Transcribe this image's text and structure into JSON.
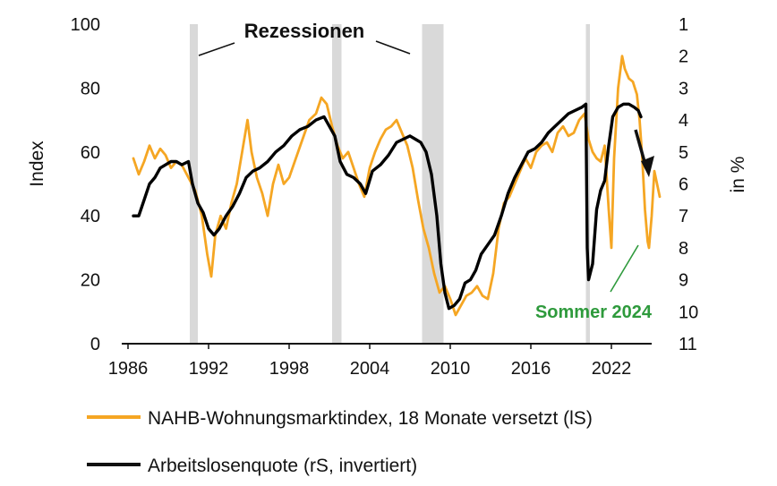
{
  "chart_data": {
    "type": "line",
    "title": "",
    "xlabel": "",
    "ylabel_left": "Index",
    "ylabel_right": "in %",
    "x_ticks": [
      "1986",
      "1992",
      "1998",
      "2004",
      "2010",
      "2016",
      "2022"
    ],
    "xlim": [
      1986,
      2025
    ],
    "y_left_ticks": [
      "0",
      "20",
      "40",
      "60",
      "80",
      "100"
    ],
    "ylim_left": [
      0,
      100
    ],
    "y_right_ticks": [
      "1",
      "2",
      "3",
      "4",
      "5",
      "6",
      "7",
      "8",
      "9",
      "10",
      "11"
    ],
    "ylim_right_inverted": [
      1,
      11
    ],
    "grid": false,
    "legend_position": "bottom",
    "annotations": {
      "recessions_label": "Rezessionen",
      "summer_label": "Sommer 2024"
    },
    "recessions": [
      [
        1990.6,
        1991.2
      ],
      [
        2001.2,
        2001.9
      ],
      [
        2007.9,
        2009.5
      ],
      [
        2020.1,
        2020.4
      ]
    ],
    "series": [
      {
        "name": "NAHB-Wohnungsmarktindex, 18 Monate versetzt (lS)",
        "color": "#F5A623",
        "axis": "left",
        "points": [
          [
            1986.4,
            58
          ],
          [
            1986.8,
            53
          ],
          [
            1987.2,
            57
          ],
          [
            1987.6,
            62
          ],
          [
            1988.0,
            58
          ],
          [
            1988.4,
            61
          ],
          [
            1988.8,
            59
          ],
          [
            1989.2,
            55
          ],
          [
            1989.6,
            57
          ],
          [
            1990.0,
            56
          ],
          [
            1990.5,
            52
          ],
          [
            1991.0,
            48
          ],
          [
            1991.5,
            40
          ],
          [
            1991.9,
            28
          ],
          [
            1992.2,
            21
          ],
          [
            1992.5,
            34
          ],
          [
            1992.9,
            40
          ],
          [
            1993.3,
            36
          ],
          [
            1993.7,
            44
          ],
          [
            1994.1,
            50
          ],
          [
            1994.5,
            60
          ],
          [
            1994.9,
            70
          ],
          [
            1995.2,
            60
          ],
          [
            1995.6,
            52
          ],
          [
            1996.0,
            47
          ],
          [
            1996.4,
            40
          ],
          [
            1996.8,
            50
          ],
          [
            1997.2,
            56
          ],
          [
            1997.6,
            50
          ],
          [
            1998.0,
            52
          ],
          [
            1998.5,
            58
          ],
          [
            1999.0,
            64
          ],
          [
            1999.5,
            70
          ],
          [
            2000.0,
            72
          ],
          [
            2000.4,
            77
          ],
          [
            2000.8,
            75
          ],
          [
            2001.2,
            68
          ],
          [
            2001.6,
            62
          ],
          [
            2002.0,
            58
          ],
          [
            2002.4,
            60
          ],
          [
            2002.8,
            55
          ],
          [
            2003.2,
            50
          ],
          [
            2003.6,
            46
          ],
          [
            2004.0,
            55
          ],
          [
            2004.4,
            60
          ],
          [
            2004.8,
            64
          ],
          [
            2005.2,
            67
          ],
          [
            2005.6,
            68
          ],
          [
            2006.0,
            70
          ],
          [
            2006.4,
            66
          ],
          [
            2006.8,
            62
          ],
          [
            2007.2,
            55
          ],
          [
            2007.6,
            45
          ],
          [
            2008.0,
            36
          ],
          [
            2008.4,
            30
          ],
          [
            2008.8,
            22
          ],
          [
            2009.2,
            16
          ],
          [
            2009.6,
            18
          ],
          [
            2010.0,
            14
          ],
          [
            2010.4,
            9
          ],
          [
            2010.8,
            12
          ],
          [
            2011.2,
            15
          ],
          [
            2011.6,
            16
          ],
          [
            2012.0,
            18
          ],
          [
            2012.4,
            15
          ],
          [
            2012.8,
            14
          ],
          [
            2013.2,
            22
          ],
          [
            2013.6,
            36
          ],
          [
            2014.0,
            44
          ],
          [
            2014.4,
            46
          ],
          [
            2014.8,
            50
          ],
          [
            2015.2,
            54
          ],
          [
            2015.6,
            58
          ],
          [
            2016.0,
            55
          ],
          [
            2016.4,
            60
          ],
          [
            2016.8,
            62
          ],
          [
            2017.2,
            63
          ],
          [
            2017.6,
            60
          ],
          [
            2018.0,
            66
          ],
          [
            2018.4,
            68
          ],
          [
            2018.8,
            65
          ],
          [
            2019.2,
            66
          ],
          [
            2019.6,
            70
          ],
          [
            2020.0,
            72
          ],
          [
            2020.3,
            64
          ],
          [
            2020.6,
            60
          ],
          [
            2020.9,
            58
          ],
          [
            2021.2,
            57
          ],
          [
            2021.5,
            62
          ],
          [
            2021.8,
            42
          ],
          [
            2022.0,
            30
          ],
          [
            2022.2,
            58
          ],
          [
            2022.5,
            80
          ],
          [
            2022.8,
            90
          ],
          [
            2023.0,
            86
          ],
          [
            2023.3,
            83
          ],
          [
            2023.6,
            82
          ],
          [
            2023.9,
            78
          ],
          [
            2024.1,
            70
          ],
          [
            2024.3,
            58
          ],
          [
            2024.5,
            42
          ],
          [
            2024.7,
            32
          ],
          [
            2024.8,
            30
          ],
          [
            2025.0,
            40
          ],
          [
            2025.2,
            54
          ],
          [
            2025.4,
            50
          ],
          [
            2025.6,
            46
          ]
        ]
      },
      {
        "name": "Arbeitslosenquote (rS, invertiert)",
        "color": "#000000",
        "axis": "right",
        "points": [
          [
            1986.4,
            7.0
          ],
          [
            1986.8,
            7.0
          ],
          [
            1987.2,
            6.5
          ],
          [
            1987.6,
            6.0
          ],
          [
            1988.0,
            5.8
          ],
          [
            1988.4,
            5.5
          ],
          [
            1988.8,
            5.4
          ],
          [
            1989.2,
            5.3
          ],
          [
            1989.6,
            5.3
          ],
          [
            1990.0,
            5.4
          ],
          [
            1990.5,
            5.3
          ],
          [
            1990.8,
            6.0
          ],
          [
            1991.2,
            6.6
          ],
          [
            1991.6,
            6.9
          ],
          [
            1992.0,
            7.4
          ],
          [
            1992.4,
            7.6
          ],
          [
            1992.8,
            7.4
          ],
          [
            1993.3,
            7.0
          ],
          [
            1993.8,
            6.7
          ],
          [
            1994.3,
            6.3
          ],
          [
            1994.8,
            5.8
          ],
          [
            1995.3,
            5.6
          ],
          [
            1995.8,
            5.5
          ],
          [
            1996.4,
            5.3
          ],
          [
            1997.0,
            5.0
          ],
          [
            1997.6,
            4.8
          ],
          [
            1998.2,
            4.5
          ],
          [
            1998.8,
            4.3
          ],
          [
            1999.4,
            4.2
          ],
          [
            2000.0,
            4.0
          ],
          [
            2000.6,
            3.9
          ],
          [
            2001.0,
            4.2
          ],
          [
            2001.4,
            4.5
          ],
          [
            2001.8,
            5.3
          ],
          [
            2002.3,
            5.7
          ],
          [
            2002.8,
            5.8
          ],
          [
            2003.3,
            6.0
          ],
          [
            2003.7,
            6.3
          ],
          [
            2004.2,
            5.6
          ],
          [
            2004.8,
            5.4
          ],
          [
            2005.4,
            5.1
          ],
          [
            2006.0,
            4.7
          ],
          [
            2006.5,
            4.6
          ],
          [
            2007.0,
            4.5
          ],
          [
            2007.4,
            4.6
          ],
          [
            2007.8,
            4.7
          ],
          [
            2008.2,
            5.0
          ],
          [
            2008.6,
            5.7
          ],
          [
            2009.0,
            7.0
          ],
          [
            2009.3,
            8.5
          ],
          [
            2009.6,
            9.4
          ],
          [
            2009.9,
            9.9
          ],
          [
            2010.3,
            9.8
          ],
          [
            2010.7,
            9.6
          ],
          [
            2011.1,
            9.1
          ],
          [
            2011.5,
            9.0
          ],
          [
            2011.9,
            8.7
          ],
          [
            2012.3,
            8.2
          ],
          [
            2012.8,
            7.9
          ],
          [
            2013.3,
            7.6
          ],
          [
            2013.8,
            7.0
          ],
          [
            2014.3,
            6.3
          ],
          [
            2014.8,
            5.8
          ],
          [
            2015.3,
            5.4
          ],
          [
            2015.8,
            5.0
          ],
          [
            2016.3,
            4.9
          ],
          [
            2016.8,
            4.7
          ],
          [
            2017.3,
            4.4
          ],
          [
            2017.8,
            4.2
          ],
          [
            2018.3,
            4.0
          ],
          [
            2018.8,
            3.8
          ],
          [
            2019.3,
            3.7
          ],
          [
            2019.8,
            3.6
          ],
          [
            2020.1,
            3.5
          ],
          [
            2020.2,
            8.0
          ],
          [
            2020.3,
            9.0
          ],
          [
            2020.6,
            8.5
          ],
          [
            2020.9,
            6.8
          ],
          [
            2021.2,
            6.2
          ],
          [
            2021.5,
            5.9
          ],
          [
            2021.8,
            4.8
          ],
          [
            2022.1,
            3.9
          ],
          [
            2022.5,
            3.6
          ],
          [
            2022.9,
            3.5
          ],
          [
            2023.3,
            3.5
          ],
          [
            2023.7,
            3.6
          ],
          [
            2024.0,
            3.7
          ],
          [
            2024.2,
            3.9
          ]
        ]
      }
    ]
  }
}
